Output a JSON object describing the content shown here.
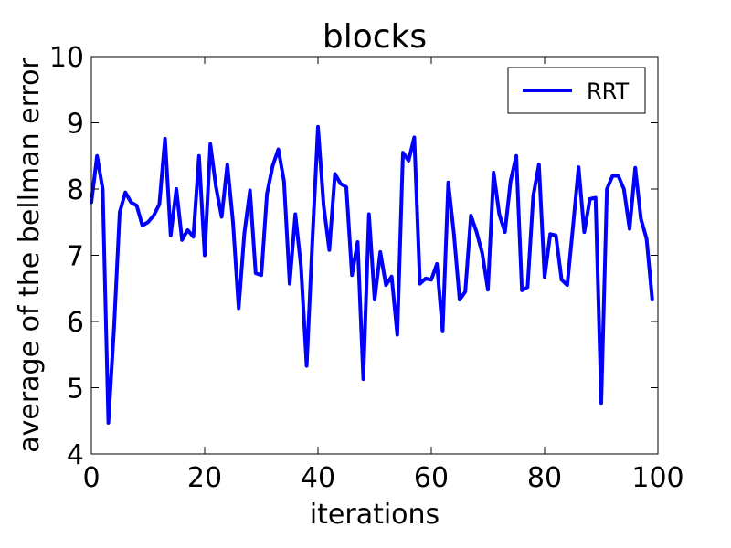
{
  "chart_data": {
    "type": "line",
    "title": "blocks",
    "xlabel": "iterations",
    "ylabel": "average of the bellman error",
    "xlim": [
      0,
      100
    ],
    "ylim": [
      4,
      10
    ],
    "xticks": [
      0,
      20,
      40,
      60,
      80,
      100
    ],
    "yticks": [
      4,
      5,
      6,
      7,
      8,
      9,
      10
    ],
    "xtick_labels": [
      "0",
      "20",
      "40",
      "60",
      "80",
      "100"
    ],
    "ytick_labels": [
      "4",
      "5",
      "6",
      "7",
      "8",
      "9",
      "10"
    ],
    "grid": false,
    "legend_position": "top-right",
    "series": [
      {
        "name": "RRT",
        "color": "#0000ff",
        "x": [
          0,
          1,
          2,
          3,
          4,
          5,
          6,
          7,
          8,
          9,
          10,
          11,
          12,
          13,
          14,
          15,
          16,
          17,
          18,
          19,
          20,
          21,
          22,
          23,
          24,
          25,
          26,
          27,
          28,
          29,
          30,
          31,
          32,
          33,
          34,
          35,
          36,
          37,
          38,
          39,
          40,
          41,
          42,
          43,
          44,
          45,
          46,
          47,
          48,
          49,
          50,
          51,
          52,
          53,
          54,
          55,
          56,
          57,
          58,
          59,
          60,
          61,
          62,
          63,
          64,
          65,
          66,
          67,
          68,
          69,
          70,
          71,
          72,
          73,
          74,
          75,
          76,
          77,
          78,
          79,
          80,
          81,
          82,
          83,
          84,
          85,
          86,
          87,
          88,
          89,
          90,
          91,
          92,
          93,
          94,
          95,
          96,
          97,
          98,
          99
        ],
        "values": [
          7.8,
          8.5,
          8.0,
          4.47,
          5.9,
          7.65,
          7.95,
          7.8,
          7.75,
          7.45,
          7.5,
          7.6,
          7.77,
          8.76,
          7.3,
          8.0,
          7.23,
          7.38,
          7.28,
          8.5,
          7.0,
          8.68,
          8.03,
          7.58,
          8.37,
          7.5,
          6.2,
          7.33,
          7.98,
          6.73,
          6.7,
          7.93,
          8.35,
          8.6,
          8.12,
          6.57,
          7.62,
          6.83,
          5.33,
          7.2,
          8.94,
          7.75,
          7.08,
          8.23,
          8.08,
          8.03,
          6.7,
          7.2,
          5.13,
          7.62,
          6.33,
          7.05,
          6.55,
          6.68,
          5.8,
          8.55,
          8.43,
          8.78,
          6.57,
          6.65,
          6.63,
          6.87,
          5.85,
          8.1,
          7.32,
          6.33,
          6.45,
          7.6,
          7.35,
          7.03,
          6.48,
          8.25,
          7.62,
          7.35,
          8.12,
          8.5,
          6.47,
          6.52,
          7.9,
          8.37,
          6.67,
          7.32,
          7.3,
          6.63,
          6.55,
          7.42,
          8.33,
          7.35,
          7.85,
          7.87,
          4.77,
          8.0,
          8.2,
          8.2,
          8.0,
          7.4,
          8.32,
          7.55,
          7.25,
          6.33
        ]
      }
    ]
  }
}
